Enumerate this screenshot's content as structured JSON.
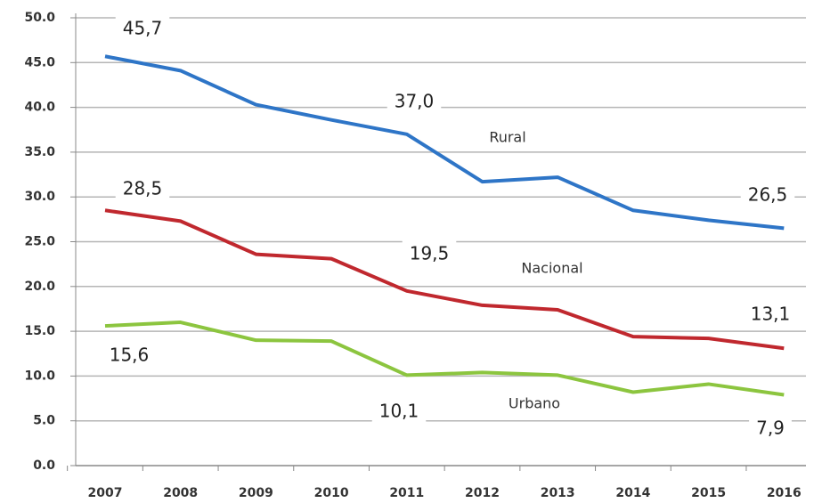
{
  "chart_data": {
    "type": "line",
    "categories": [
      "2007",
      "2008",
      "2009",
      "2010",
      "2011",
      "2012",
      "2013",
      "2014",
      "2015",
      "2016"
    ],
    "series": [
      {
        "name": "Rural",
        "color": "#2e75c7",
        "values": [
          45.7,
          44.1,
          40.3,
          38.6,
          37.0,
          31.7,
          32.2,
          28.5,
          27.4,
          26.5
        ],
        "value_labels": [
          "45,7",
          null,
          null,
          null,
          "37,0",
          null,
          null,
          null,
          null,
          "26,5"
        ]
      },
      {
        "name": "Nacional",
        "color": "#c0282e",
        "values": [
          28.5,
          27.3,
          23.6,
          23.1,
          19.5,
          17.9,
          17.4,
          14.4,
          14.2,
          13.1
        ],
        "value_labels": [
          "28,5",
          null,
          null,
          null,
          "19,5",
          null,
          null,
          null,
          null,
          "13,1"
        ]
      },
      {
        "name": "Urbano",
        "color": "#8cc53f",
        "values": [
          15.6,
          16.0,
          14.0,
          13.9,
          10.1,
          10.4,
          10.1,
          8.2,
          9.1,
          7.9
        ],
        "value_labels": [
          "15,6",
          null,
          null,
          null,
          "10,1",
          null,
          null,
          null,
          null,
          "7,9"
        ]
      }
    ],
    "ylim": [
      0,
      50
    ],
    "yticks": [
      {
        "value": 0,
        "label": "0.0"
      },
      {
        "value": 5,
        "label": "5.0"
      },
      {
        "value": 10,
        "label": "10.0"
      },
      {
        "value": 15,
        "label": "15.0"
      },
      {
        "value": 20,
        "label": "20.0"
      },
      {
        "value": 25,
        "label": "25.0"
      },
      {
        "value": 30,
        "label": "30.0"
      },
      {
        "value": 35,
        "label": "35.0"
      },
      {
        "value": 40,
        "label": "40.0"
      },
      {
        "value": 45,
        "label": "45.0"
      },
      {
        "value": 50,
        "label": "50.0"
      }
    ],
    "grid": true
  }
}
